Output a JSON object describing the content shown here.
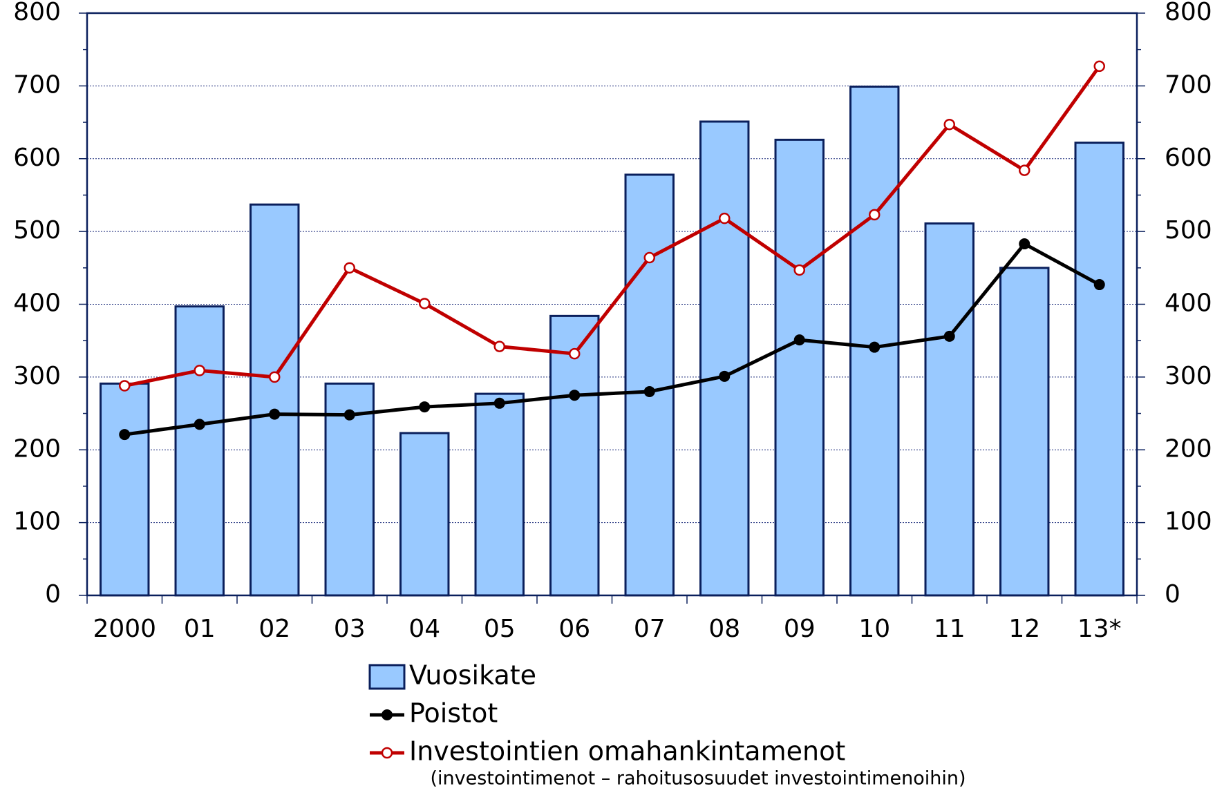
{
  "chart_data": {
    "type": "bar_line",
    "categories": [
      "2000",
      "01",
      "02",
      "03",
      "04",
      "05",
      "06",
      "07",
      "08",
      "09",
      "10",
      "11",
      "12",
      "13*"
    ],
    "series": [
      {
        "name": "Vuosikate",
        "type": "bar",
        "color": "#99c9ff",
        "values": [
          291,
          397,
          537,
          291,
          223,
          277,
          384,
          578,
          651,
          626,
          699,
          511,
          450,
          622
        ]
      },
      {
        "name": "Poistot",
        "type": "line",
        "color": "#000000",
        "values": [
          221,
          235,
          249,
          248,
          259,
          264,
          275,
          280,
          301,
          351,
          341,
          356,
          483,
          427
        ]
      },
      {
        "name": "Investointien omahankintamenot",
        "type": "line",
        "color": "#c00000",
        "values": [
          288,
          309,
          300,
          450,
          401,
          342,
          332,
          464,
          518,
          447,
          523,
          647,
          584,
          727
        ]
      }
    ],
    "note": "(investointimenot – rahoitusosuudet investointimenoihin)",
    "ylim": [
      0,
      800
    ],
    "yticks": [
      0,
      100,
      200,
      300,
      400,
      500,
      600,
      700,
      800
    ],
    "y2lim": [
      0,
      800
    ],
    "y2ticks": [
      0,
      100,
      200,
      300,
      400,
      500,
      600,
      700,
      800
    ],
    "grid": true
  }
}
